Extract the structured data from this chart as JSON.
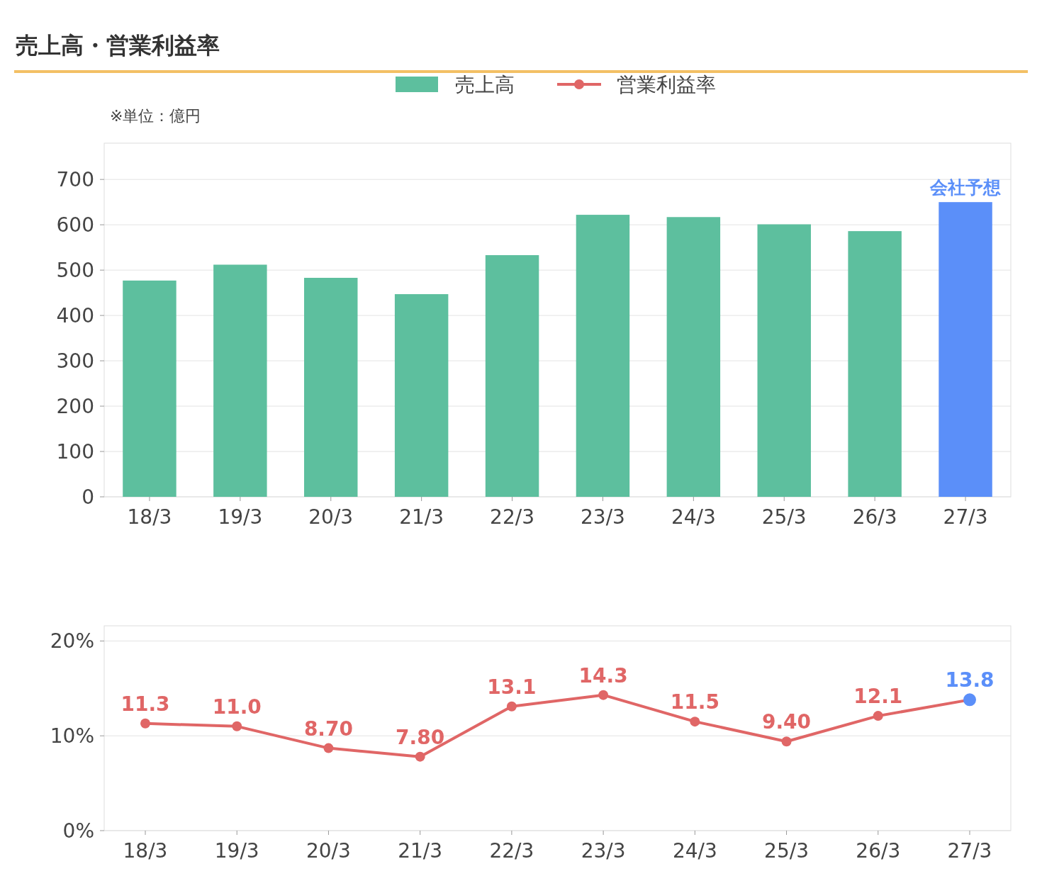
{
  "chart_data": [
    {
      "type": "bar",
      "title": "売上高・営業利益率",
      "annotations": [
        "※単位：億円",
        {
          "text": "会社予想",
          "x": "27/3",
          "y": 650
        }
      ],
      "categories": [
        "18/3",
        "19/3",
        "20/3",
        "21/3",
        "22/3",
        "23/3",
        "24/3",
        "25/3",
        "26/3",
        "27/3"
      ],
      "series": [
        {
          "name": "売上高",
          "color": "#5dbf9e",
          "values": [
            477,
            512,
            483,
            447,
            533,
            622,
            617,
            601,
            586,
            650
          ],
          "colors": [
            "#5dbf9e",
            "#5dbf9e",
            "#5dbf9e",
            "#5dbf9e",
            "#5dbf9e",
            "#5dbf9e",
            "#5dbf9e",
            "#5dbf9e",
            "#5dbf9e",
            "#5b8ff9"
          ]
        }
      ],
      "ylim": [
        0,
        780
      ],
      "yticks": [
        0,
        100,
        200,
        300,
        400,
        500,
        600,
        700
      ],
      "grid": "y",
      "legend": "top"
    },
    {
      "type": "line",
      "categories": [
        "18/3",
        "19/3",
        "20/3",
        "21/3",
        "22/3",
        "23/3",
        "24/3",
        "25/3",
        "26/3",
        "27/3"
      ],
      "series": [
        {
          "name": "営業利益率",
          "color": "#e06666",
          "values": [
            11.3,
            11.0,
            8.7,
            7.8,
            13.1,
            14.3,
            11.5,
            9.4,
            12.1,
            13.8
          ],
          "colors": [
            "#e06666",
            "#e06666",
            "#e06666",
            "#e06666",
            "#e06666",
            "#e06666",
            "#e06666",
            "#e06666",
            "#e06666",
            "#5b8ff9"
          ],
          "value_labels": [
            "11.3",
            "11.0",
            "8.70",
            "7.80",
            "13.1",
            "14.3",
            "11.5",
            "9.40",
            "12.1",
            "13.8"
          ]
        }
      ],
      "ylim": [
        0,
        21.6
      ],
      "yticks": [
        {
          "value": 0,
          "label": "0%"
        },
        {
          "value": 10,
          "label": "10%"
        },
        {
          "value": 20,
          "label": "20%"
        }
      ],
      "grid": "y",
      "marker": "circle",
      "legend": "top"
    }
  ]
}
